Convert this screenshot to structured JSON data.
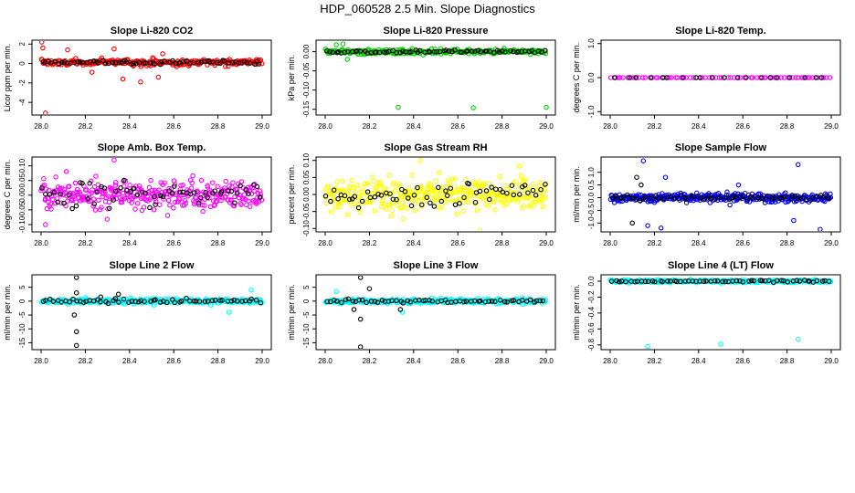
{
  "page": {
    "title": "HDP_060528  2.5 Min. Slope Diagnostics"
  },
  "colors": {
    "black": "#000000",
    "red": "#ff0000",
    "green": "#00cc00",
    "magenta": "#ff00ff",
    "yellow": "#ffff00",
    "blue": "#0000ff",
    "cyan": "#00ffff"
  },
  "chart_data": [
    {
      "type": "scatter",
      "title": "Slope Li-820 CO2",
      "ylabel": "Licor ppm per min.",
      "xlabel": "",
      "xlim": [
        28.0,
        29.0
      ],
      "ylim": [
        -5.3,
        2.4
      ],
      "xticks": [
        28.0,
        28.2,
        28.4,
        28.6,
        28.8,
        29.0
      ],
      "xtick_labels": [
        "28.0",
        "28.2",
        "28.4",
        "28.6",
        "28.8",
        "29.0"
      ],
      "yticks": [
        2,
        0,
        -2,
        -4
      ],
      "ytick_labels": [
        "2",
        "0",
        "-2",
        "-4"
      ],
      "series": [
        {
          "color": "#ff0000",
          "center": 0.1,
          "spread": 0.35,
          "n": 260,
          "seed": 11,
          "points": [
            [
              28.003,
              2.2
            ],
            [
              28.008,
              1.6
            ],
            [
              28.02,
              -5.1
            ],
            [
              28.12,
              1.4
            ],
            [
              28.33,
              1.5
            ],
            [
              28.37,
              -1.6
            ],
            [
              28.45,
              -1.9
            ],
            [
              28.53,
              -1.4
            ],
            [
              28.55,
              1.0
            ],
            [
              28.23,
              -0.9
            ]
          ]
        },
        {
          "color": "#000000",
          "center": 0.1,
          "spread": 0.18,
          "n": 70,
          "seed": 12,
          "points": []
        }
      ]
    },
    {
      "type": "scatter",
      "title": "Slope Li-820 Pressure",
      "ylabel": "kPa per min.",
      "xlabel": "",
      "xlim": [
        28.0,
        29.0
      ],
      "ylim": [
        -0.165,
        0.03
      ],
      "xticks": [
        28.0,
        28.2,
        28.4,
        28.6,
        28.8,
        29.0
      ],
      "xtick_labels": [
        "28.0",
        "28.2",
        "28.4",
        "28.6",
        "28.8",
        "29.0"
      ],
      "yticks": [
        0.0,
        -0.05,
        -0.1,
        -0.15
      ],
      "ytick_labels": [
        "0.00",
        "-0.05",
        "-0.10",
        "-0.15"
      ],
      "series": [
        {
          "color": "#00cc00",
          "center": 0.0,
          "spread": 0.007,
          "n": 260,
          "seed": 21,
          "points": [
            [
              28.33,
              -0.145
            ],
            [
              28.67,
              -0.146
            ],
            [
              29.0,
              -0.145
            ],
            [
              28.05,
              0.018
            ],
            [
              28.08,
              0.02
            ],
            [
              28.1,
              -0.02
            ]
          ]
        },
        {
          "color": "#000000",
          "center": 0.0,
          "spread": 0.004,
          "n": 70,
          "seed": 22,
          "points": []
        }
      ]
    },
    {
      "type": "scatter",
      "title": "Slope Li-820 Temp.",
      "ylabel": "degrees C per min.",
      "xlabel": "",
      "xlim": [
        28.0,
        29.0
      ],
      "ylim": [
        -1.1,
        1.1
      ],
      "xticks": [
        28.0,
        28.2,
        28.4,
        28.6,
        28.8,
        29.0
      ],
      "xtick_labels": [
        "28.0",
        "28.2",
        "28.4",
        "28.6",
        "28.8",
        "29.0"
      ],
      "yticks": [
        1.0,
        0.0,
        -1.0
      ],
      "ytick_labels": [
        "1.0",
        "0.0",
        "-1.0"
      ],
      "series": [
        {
          "color": "#ff00ff",
          "center": 0.0,
          "spread": 0.0,
          "n": 70,
          "seed": 31,
          "points": []
        },
        {
          "color": "#000000",
          "center": 0.0,
          "spread": 0.0,
          "n": 20,
          "seed": 32,
          "points": []
        }
      ]
    },
    {
      "type": "scatter",
      "title": "Slope Amb. Box Temp.",
      "ylabel": "degrees C per min.",
      "xlabel": "",
      "xlim": [
        28.0,
        29.0
      ],
      "ylim": [
        -0.125,
        0.13
      ],
      "xticks": [
        28.0,
        28.2,
        28.4,
        28.6,
        28.8,
        29.0
      ],
      "xtick_labels": [
        "28.0",
        "28.2",
        "28.4",
        "28.6",
        "28.8",
        "29.0"
      ],
      "yticks": [
        0.1,
        0.05,
        0.0,
        -0.05,
        -0.1
      ],
      "ytick_labels": [
        "0.10",
        "0.05",
        "0.00",
        "-0.05",
        "-0.10"
      ],
      "series": [
        {
          "color": "#ff00ff",
          "center": 0.0,
          "spread": 0.055,
          "n": 320,
          "seed": 41,
          "points": [
            [
              28.33,
              0.12
            ],
            [
              28.02,
              -0.1
            ]
          ]
        },
        {
          "color": "#000000",
          "center": 0.0,
          "spread": 0.045,
          "n": 60,
          "seed": 42,
          "points": []
        }
      ]
    },
    {
      "type": "scatter",
      "title": "Slope Gas Stream RH",
      "ylabel": "percent per min.",
      "xlabel": "",
      "xlim": [
        28.0,
        29.0
      ],
      "ylim": [
        -0.11,
        0.11
      ],
      "xticks": [
        28.0,
        28.2,
        28.4,
        28.6,
        28.8,
        29.0
      ],
      "xtick_labels": [
        "28.0",
        "28.2",
        "28.4",
        "28.6",
        "28.8",
        "29.0"
      ],
      "yticks": [
        0.1,
        0.05,
        0.0,
        -0.05,
        -0.1
      ],
      "ytick_labels": [
        "0.10",
        "0.05",
        "0.00",
        "-0.05",
        "-0.10"
      ],
      "series": [
        {
          "color": "#ffff00",
          "center": 0.0,
          "spread": 0.05,
          "n": 360,
          "seed": 51,
          "points": [
            [
              28.43,
              0.1
            ],
            [
              28.7,
              -0.105
            ]
          ]
        },
        {
          "color": "#000000",
          "center": 0.0,
          "spread": 0.04,
          "n": 60,
          "seed": 52,
          "points": []
        }
      ]
    },
    {
      "type": "scatter",
      "title": "Slope Sample Flow",
      "ylabel": "ml/min per min.",
      "xlabel": "",
      "xlim": [
        28.0,
        29.0
      ],
      "ylim": [
        -1.35,
        1.6
      ],
      "xticks": [
        28.0,
        28.2,
        28.4,
        28.6,
        28.8,
        29.0
      ],
      "xtick_labels": [
        "28.0",
        "28.2",
        "28.4",
        "28.6",
        "28.8",
        "29.0"
      ],
      "yticks": [
        1.0,
        0.5,
        0.0,
        -0.5,
        -1.0
      ],
      "ytick_labels": [
        "1.0",
        "0.5",
        "0.0",
        "-0.5",
        "-1.0"
      ],
      "series": [
        {
          "color": "#0000ff",
          "center": 0.0,
          "spread": 0.18,
          "n": 320,
          "seed": 61,
          "points": [
            [
              28.15,
              1.45
            ],
            [
              28.25,
              0.8
            ],
            [
              28.17,
              -1.1
            ],
            [
              28.23,
              -1.2
            ],
            [
              28.58,
              0.5
            ],
            [
              28.85,
              1.3
            ],
            [
              28.95,
              -1.25
            ],
            [
              28.83,
              -0.9
            ]
          ]
        },
        {
          "color": "#000000",
          "center": 0.0,
          "spread": 0.1,
          "n": 70,
          "seed": 62,
          "points": [
            [
              28.12,
              0.8
            ],
            [
              28.14,
              0.5
            ],
            [
              28.1,
              -1.0
            ]
          ]
        }
      ]
    },
    {
      "type": "scatter",
      "title": "Slope Line 2 Flow",
      "ylabel": "ml/min per min.",
      "xlabel": "",
      "xlim": [
        28.0,
        29.0
      ],
      "ylim": [
        -17.5,
        9.5
      ],
      "xticks": [
        28.0,
        28.2,
        28.4,
        28.6,
        28.8,
        29.0
      ],
      "xtick_labels": [
        "28.0",
        "28.2",
        "28.4",
        "28.6",
        "28.8",
        "29.0"
      ],
      "yticks": [
        5,
        0,
        -5,
        -10,
        -15
      ],
      "ytick_labels": [
        "5",
        "0",
        "-5",
        "-10",
        "-15"
      ],
      "series": [
        {
          "color": "#00ffff",
          "center": 0.0,
          "spread": 0.9,
          "n": 300,
          "seed": 71,
          "points": [
            [
              28.95,
              4.0
            ],
            [
              28.85,
              -4.0
            ]
          ]
        },
        {
          "color": "#000000",
          "center": 0.0,
          "spread": 0.8,
          "n": 60,
          "seed": 72,
          "points": [
            [
              28.16,
              8.5
            ],
            [
              28.16,
              -16.0
            ],
            [
              28.16,
              -11.0
            ],
            [
              28.15,
              -5.0
            ],
            [
              28.16,
              3.0
            ],
            [
              28.35,
              2.5
            ],
            [
              28.27,
              1.5
            ]
          ]
        }
      ]
    },
    {
      "type": "scatter",
      "title": "Slope Line 3 Flow",
      "ylabel": "ml/min per min.",
      "xlabel": "",
      "xlim": [
        28.0,
        29.0
      ],
      "ylim": [
        -17.5,
        9.5
      ],
      "xticks": [
        28.0,
        28.2,
        28.4,
        28.6,
        28.8,
        29.0
      ],
      "xtick_labels": [
        "28.0",
        "28.2",
        "28.4",
        "28.6",
        "28.8",
        "29.0"
      ],
      "yticks": [
        5,
        0,
        -5,
        -10,
        -15
      ],
      "ytick_labels": [
        "5",
        "0",
        "-5",
        "-10",
        "-15"
      ],
      "series": [
        {
          "color": "#00ffff",
          "center": 0.0,
          "spread": 0.9,
          "n": 300,
          "seed": 81,
          "points": [
            [
              28.05,
              3.5
            ],
            [
              28.35,
              -4.0
            ]
          ]
        },
        {
          "color": "#000000",
          "center": 0.0,
          "spread": 0.8,
          "n": 60,
          "seed": 82,
          "points": [
            [
              28.16,
              8.5
            ],
            [
              28.16,
              -16.5
            ],
            [
              28.16,
              -6.5
            ],
            [
              28.13,
              -3.0
            ],
            [
              28.2,
              4.5
            ],
            [
              28.34,
              -3.0
            ]
          ]
        }
      ]
    },
    {
      "type": "scatter",
      "title": "Slope Line 4 (LT) Flow",
      "ylabel": "ml/min per min.",
      "xlabel": "",
      "xlim": [
        28.0,
        29.0
      ],
      "ylim": [
        -0.86,
        0.08
      ],
      "xticks": [
        28.0,
        28.2,
        28.4,
        28.6,
        28.8,
        29.0
      ],
      "xtick_labels": [
        "28.0",
        "28.2",
        "28.4",
        "28.6",
        "28.8",
        "29.0"
      ],
      "yticks": [
        0.0,
        -0.2,
        -0.4,
        -0.6,
        -0.8
      ],
      "ytick_labels": [
        "0.0",
        "-0.2",
        "-0.4",
        "-0.6",
        "-0.8"
      ],
      "series": [
        {
          "color": "#00ffff",
          "center": 0.0,
          "spread": 0.02,
          "n": 300,
          "seed": 91,
          "points": [
            [
              28.17,
              -0.82
            ],
            [
              28.5,
              -0.79
            ],
            [
              28.85,
              -0.73
            ]
          ]
        },
        {
          "color": "#000000",
          "center": 0.0,
          "spread": 0.012,
          "n": 60,
          "seed": 92,
          "points": []
        }
      ]
    }
  ]
}
